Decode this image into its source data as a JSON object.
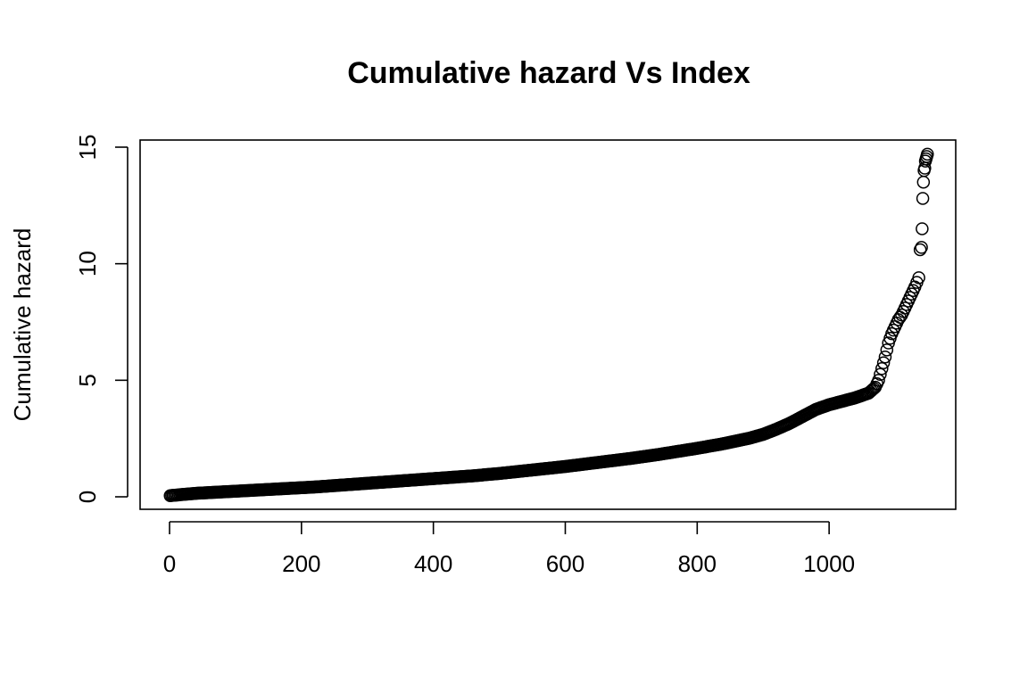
{
  "chart_data": {
    "type": "scatter",
    "title": "Cumulative hazard Vs Index",
    "xlabel": "",
    "ylabel": "Cumulative hazard",
    "xlim": [
      0,
      1150
    ],
    "ylim": [
      0,
      15
    ],
    "x_ticks": [
      0,
      200,
      400,
      600,
      800,
      1000
    ],
    "x_tick_labels": [
      "0",
      "200",
      "400",
      "600",
      "800",
      "1000"
    ],
    "y_ticks": [
      0,
      5,
      10,
      15
    ],
    "y_tick_labels": [
      "0",
      "5",
      "10",
      "15"
    ],
    "grid": false,
    "legend": "none",
    "marker": "open-circle",
    "series": [
      {
        "x": [
          1,
          20,
          40,
          60,
          80,
          100,
          120,
          140,
          160,
          180,
          200,
          220,
          240,
          260,
          280,
          300,
          320,
          340,
          360,
          380,
          400,
          420,
          440,
          460,
          480,
          500,
          520,
          540,
          560,
          580,
          600,
          620,
          640,
          660,
          680,
          700,
          720,
          740,
          760,
          780,
          800,
          820,
          840,
          860,
          880,
          900,
          920,
          940,
          960,
          980,
          1000,
          1020,
          1040,
          1060,
          1070,
          1075,
          1080,
          1085,
          1090,
          1095,
          1100,
          1105,
          1110,
          1115,
          1120,
          1125,
          1130,
          1133,
          1136,
          1138,
          1140,
          1141,
          1142,
          1143,
          1144,
          1145,
          1146,
          1147,
          1148,
          1149
        ],
        "y": [
          0.05,
          0.1,
          0.15,
          0.18,
          0.21,
          0.24,
          0.27,
          0.3,
          0.33,
          0.36,
          0.39,
          0.42,
          0.46,
          0.5,
          0.54,
          0.58,
          0.62,
          0.66,
          0.7,
          0.74,
          0.78,
          0.82,
          0.86,
          0.9,
          0.95,
          1.0,
          1.06,
          1.12,
          1.18,
          1.24,
          1.3,
          1.37,
          1.44,
          1.51,
          1.58,
          1.65,
          1.73,
          1.81,
          1.9,
          1.99,
          2.08,
          2.18,
          2.28,
          2.4,
          2.52,
          2.68,
          2.9,
          3.15,
          3.45,
          3.75,
          3.95,
          4.1,
          4.25,
          4.45,
          4.7,
          5.0,
          5.5,
          6.0,
          6.6,
          7.0,
          7.3,
          7.6,
          7.8,
          8.1,
          8.4,
          8.7,
          9.0,
          9.2,
          9.4,
          10.6,
          10.7,
          11.5,
          12.8,
          13.5,
          14.0,
          14.1,
          14.4,
          14.5,
          14.6,
          14.7
        ]
      }
    ]
  }
}
